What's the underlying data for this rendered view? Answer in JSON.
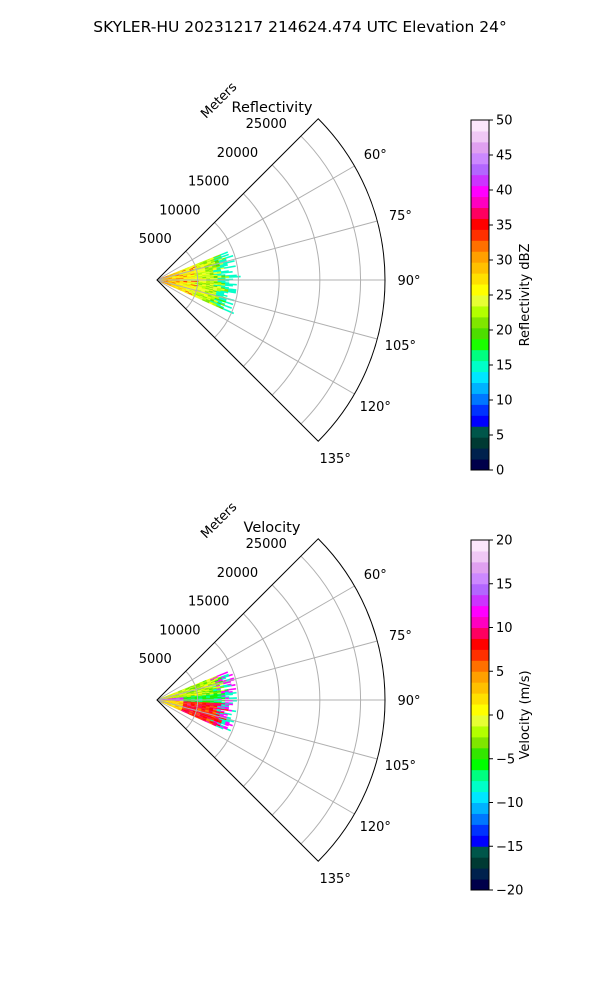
{
  "figure_title": "SKYLER-HU  20231217  214624.474 UTC Elevation 24°",
  "colors": {
    "grid": "#b0b0b0",
    "frame": "#000000",
    "reflectivity_colormap": [
      "#00004a",
      "#00214d",
      "#003a33",
      "#00564a",
      "#0000ff",
      "#0033ff",
      "#0077ff",
      "#00b2ff",
      "#00e6ff",
      "#00ffc8",
      "#00ff80",
      "#1aff00",
      "#4ddd00",
      "#80e600",
      "#b3ff00",
      "#e6ff33",
      "#ffff00",
      "#ffe000",
      "#ffc000",
      "#ffa000",
      "#ff7000",
      "#ff3000",
      "#ff0000",
      "#ff0060",
      "#ff00c0",
      "#ff00ff",
      "#cc33ff",
      "#b366ff",
      "#cc88ff",
      "#e0a0f0",
      "#f0c8f5",
      "#fbe6fb"
    ],
    "velocity_colormap": [
      "#00004a",
      "#00214d",
      "#003a33",
      "#00564a",
      "#0000ff",
      "#0033ff",
      "#0077ff",
      "#00b2ff",
      "#00e6ff",
      "#00ffc8",
      "#00ff80",
      "#00ff00",
      "#33e600",
      "#80e600",
      "#b3ff00",
      "#e6ff33",
      "#ffff00",
      "#ffe000",
      "#ffc000",
      "#ffa000",
      "#ff7000",
      "#ff3000",
      "#ff0000",
      "#ff0060",
      "#ff00c0",
      "#ff00ff",
      "#cc33ff",
      "#b366ff",
      "#cc88ff",
      "#e0a0f0",
      "#f0c8f5",
      "#fbe6fb"
    ]
  },
  "chart_data": [
    {
      "type": "heatmap",
      "projection": "polar-sector",
      "title": "Reflectivity",
      "r_axis_label": "Meters",
      "r_ticks": [
        5000,
        10000,
        15000,
        20000,
        25000
      ],
      "r_max": 28000,
      "theta_ticks": [
        "60°",
        "75°",
        "90°",
        "105°",
        "120°",
        "135°"
      ],
      "theta_tick_values": [
        60,
        75,
        90,
        105,
        120,
        135
      ],
      "theta_range": [
        45,
        135
      ],
      "data_extent_m": 9500,
      "data_azimuth_range": [
        68,
        114
      ],
      "colorbar": {
        "label": "Reflectivity dBZ",
        "min": 0,
        "max": 50,
        "ticks": [
          0,
          5,
          10,
          15,
          20,
          25,
          30,
          35,
          40,
          45,
          50
        ]
      }
    },
    {
      "type": "heatmap",
      "projection": "polar-sector",
      "title": "Velocity",
      "r_axis_label": "Meters",
      "r_ticks": [
        5000,
        10000,
        15000,
        20000,
        25000
      ],
      "r_max": 28000,
      "theta_ticks": [
        "60°",
        "75°",
        "90°",
        "105°",
        "120°",
        "135°"
      ],
      "theta_tick_values": [
        60,
        75,
        90,
        105,
        120,
        135
      ],
      "theta_range": [
        45,
        135
      ],
      "data_extent_m": 9500,
      "data_azimuth_range": [
        68,
        114
      ],
      "colorbar": {
        "label": "Velocity (m/s)",
        "min": -20,
        "max": 20,
        "ticks": [
          -20,
          -15,
          -10,
          -5,
          0,
          5,
          10,
          15,
          20
        ]
      }
    }
  ]
}
